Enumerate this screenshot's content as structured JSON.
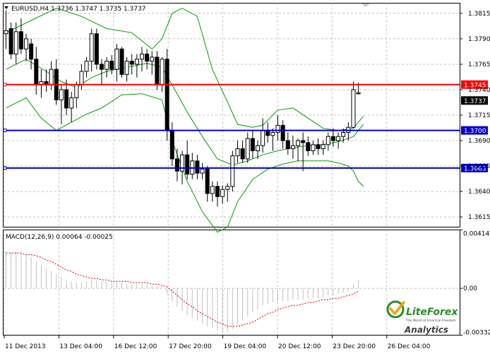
{
  "chart_data": [
    {
      "type": "candlestick",
      "title": "EURUSD,H4  1.3736 1.3747 1.3735 1.3737",
      "symbol": "EURUSD",
      "timeframe": "H4",
      "ohlc_header": {
        "open": 1.3736,
        "high": 1.3747,
        "low": 1.3735,
        "close": 1.3737
      },
      "ylim": [
        1.3605,
        1.3825
      ],
      "y_ticks": [
        "1.3815",
        "1.3790",
        "1.3765",
        "1.3740",
        "1.3715",
        "1.3690",
        "1.3665",
        "1.3640",
        "1.3615"
      ],
      "x_ticks": [
        "11 Dec 2013",
        "13 Dec 04:00",
        "16 Dec 12:00",
        "17 Dec 20:00",
        "19 Dec 04:00",
        "20 Dec 12:00",
        "23 Dec 20:00",
        "26 Dec 04:00"
      ],
      "horizontal_lines": [
        {
          "price": 1.3745,
          "label": "1.3745",
          "color": "#ff0000"
        },
        {
          "price": 1.37,
          "label": "1.3700",
          "color": "#0000cc"
        },
        {
          "price": 1.3663,
          "label": "1.3663",
          "color": "#0000cc"
        }
      ],
      "current_price_label": "1.3737",
      "bullish_color": "#ffffff",
      "bearish_color": "#000000",
      "bollinger_color": "#00a000",
      "candles": [
        {
          "o": 1.3795,
          "h": 1.3818,
          "l": 1.378,
          "c": 1.3798
        },
        {
          "o": 1.38,
          "h": 1.3806,
          "l": 1.377,
          "c": 1.3775
        },
        {
          "o": 1.3775,
          "h": 1.3806,
          "l": 1.3765,
          "c": 1.3797
        },
        {
          "o": 1.3797,
          "h": 1.381,
          "l": 1.3775,
          "c": 1.378
        },
        {
          "o": 1.378,
          "h": 1.3795,
          "l": 1.3768,
          "c": 1.379
        },
        {
          "o": 1.3785,
          "h": 1.379,
          "l": 1.376,
          "c": 1.377
        },
        {
          "o": 1.377,
          "h": 1.3782,
          "l": 1.3735,
          "c": 1.3745
        },
        {
          "o": 1.3745,
          "h": 1.376,
          "l": 1.3732,
          "c": 1.3748
        },
        {
          "o": 1.3748,
          "h": 1.376,
          "l": 1.3738,
          "c": 1.3745
        },
        {
          "o": 1.3745,
          "h": 1.3768,
          "l": 1.374,
          "c": 1.376
        },
        {
          "o": 1.376,
          "h": 1.377,
          "l": 1.3725,
          "c": 1.373
        },
        {
          "o": 1.373,
          "h": 1.3745,
          "l": 1.3706,
          "c": 1.374
        },
        {
          "o": 1.374,
          "h": 1.375,
          "l": 1.3715,
          "c": 1.3722
        },
        {
          "o": 1.3722,
          "h": 1.3738,
          "l": 1.3708,
          "c": 1.3732
        },
        {
          "o": 1.3732,
          "h": 1.3748,
          "l": 1.3722,
          "c": 1.3745
        },
        {
          "o": 1.3745,
          "h": 1.3765,
          "l": 1.374,
          "c": 1.3758
        },
        {
          "o": 1.3758,
          "h": 1.3772,
          "l": 1.3752,
          "c": 1.3768
        },
        {
          "o": 1.3768,
          "h": 1.38,
          "l": 1.3758,
          "c": 1.3795
        },
        {
          "o": 1.3795,
          "h": 1.38,
          "l": 1.376,
          "c": 1.3765
        },
        {
          "o": 1.3765,
          "h": 1.377,
          "l": 1.3745,
          "c": 1.376
        },
        {
          "o": 1.376,
          "h": 1.3772,
          "l": 1.3752,
          "c": 1.3768
        },
        {
          "o": 1.3768,
          "h": 1.3774,
          "l": 1.3755,
          "c": 1.376
        },
        {
          "o": 1.376,
          "h": 1.3785,
          "l": 1.3748,
          "c": 1.378
        },
        {
          "o": 1.378,
          "h": 1.3782,
          "l": 1.3752,
          "c": 1.3755
        },
        {
          "o": 1.3755,
          "h": 1.3772,
          "l": 1.3748,
          "c": 1.3768
        },
        {
          "o": 1.3768,
          "h": 1.3775,
          "l": 1.3755,
          "c": 1.3765
        },
        {
          "o": 1.3765,
          "h": 1.3775,
          "l": 1.3752,
          "c": 1.377
        },
        {
          "o": 1.377,
          "h": 1.3782,
          "l": 1.3758,
          "c": 1.3775
        },
        {
          "o": 1.3775,
          "h": 1.378,
          "l": 1.376,
          "c": 1.3768
        },
        {
          "o": 1.3768,
          "h": 1.3778,
          "l": 1.3755,
          "c": 1.3772
        },
        {
          "o": 1.3772,
          "h": 1.3778,
          "l": 1.374,
          "c": 1.3745
        },
        {
          "o": 1.3745,
          "h": 1.3772,
          "l": 1.3738,
          "c": 1.377
        },
        {
          "o": 1.377,
          "h": 1.378,
          "l": 1.369,
          "c": 1.37
        },
        {
          "o": 1.37,
          "h": 1.3708,
          "l": 1.3665,
          "c": 1.3672
        },
        {
          "o": 1.3672,
          "h": 1.3682,
          "l": 1.365,
          "c": 1.366
        },
        {
          "o": 1.366,
          "h": 1.368,
          "l": 1.3647,
          "c": 1.3676
        },
        {
          "o": 1.3676,
          "h": 1.369,
          "l": 1.3652,
          "c": 1.3657
        },
        {
          "o": 1.3657,
          "h": 1.3678,
          "l": 1.3652,
          "c": 1.367
        },
        {
          "o": 1.367,
          "h": 1.3676,
          "l": 1.3652,
          "c": 1.3658
        },
        {
          "o": 1.3658,
          "h": 1.3668,
          "l": 1.3652,
          "c": 1.3662
        },
        {
          "o": 1.3662,
          "h": 1.3665,
          "l": 1.363,
          "c": 1.3638
        },
        {
          "o": 1.3638,
          "h": 1.365,
          "l": 1.363,
          "c": 1.3645
        },
        {
          "o": 1.3645,
          "h": 1.365,
          "l": 1.3625,
          "c": 1.3635
        },
        {
          "o": 1.3635,
          "h": 1.3646,
          "l": 1.3628,
          "c": 1.3642
        },
        {
          "o": 1.3642,
          "h": 1.3648,
          "l": 1.363,
          "c": 1.3645
        },
        {
          "o": 1.3645,
          "h": 1.368,
          "l": 1.364,
          "c": 1.3675
        },
        {
          "o": 1.3675,
          "h": 1.369,
          "l": 1.3668,
          "c": 1.3682
        },
        {
          "o": 1.3682,
          "h": 1.369,
          "l": 1.3668,
          "c": 1.3672
        },
        {
          "o": 1.3672,
          "h": 1.3698,
          "l": 1.3668,
          "c": 1.3692
        },
        {
          "o": 1.3692,
          "h": 1.37,
          "l": 1.3672,
          "c": 1.368
        },
        {
          "o": 1.368,
          "h": 1.369,
          "l": 1.3672,
          "c": 1.3685
        },
        {
          "o": 1.3685,
          "h": 1.3712,
          "l": 1.3678,
          "c": 1.37
        },
        {
          "o": 1.37,
          "h": 1.3708,
          "l": 1.3688,
          "c": 1.3695
        },
        {
          "o": 1.3695,
          "h": 1.3702,
          "l": 1.368,
          "c": 1.3698
        },
        {
          "o": 1.3698,
          "h": 1.3715,
          "l": 1.369,
          "c": 1.3705
        },
        {
          "o": 1.3705,
          "h": 1.371,
          "l": 1.3682,
          "c": 1.369
        },
        {
          "o": 1.369,
          "h": 1.3698,
          "l": 1.3676,
          "c": 1.3682
        },
        {
          "o": 1.3682,
          "h": 1.3695,
          "l": 1.3672,
          "c": 1.3685
        },
        {
          "o": 1.3685,
          "h": 1.3692,
          "l": 1.367,
          "c": 1.369
        },
        {
          "o": 1.369,
          "h": 1.3698,
          "l": 1.366,
          "c": 1.3688
        },
        {
          "o": 1.3688,
          "h": 1.3694,
          "l": 1.3675,
          "c": 1.368
        },
        {
          "o": 1.368,
          "h": 1.369,
          "l": 1.3676,
          "c": 1.3686
        },
        {
          "o": 1.3686,
          "h": 1.3692,
          "l": 1.3676,
          "c": 1.3682
        },
        {
          "o": 1.3682,
          "h": 1.369,
          "l": 1.3676,
          "c": 1.3686
        },
        {
          "o": 1.3686,
          "h": 1.3698,
          "l": 1.368,
          "c": 1.3694
        },
        {
          "o": 1.3694,
          "h": 1.3702,
          "l": 1.3684,
          "c": 1.369
        },
        {
          "o": 1.369,
          "h": 1.3698,
          "l": 1.3682,
          "c": 1.3694
        },
        {
          "o": 1.3694,
          "h": 1.3702,
          "l": 1.3688,
          "c": 1.3698
        },
        {
          "o": 1.3698,
          "h": 1.3708,
          "l": 1.369,
          "c": 1.3703
        },
        {
          "o": 1.3703,
          "h": 1.3748,
          "l": 1.3702,
          "c": 1.374
        },
        {
          "o": 1.3736,
          "h": 1.3747,
          "l": 1.3735,
          "c": 1.3737
        }
      ],
      "bollinger": {
        "upper": [
          [
            0,
            1.3796
          ],
          [
            5,
            1.3808
          ],
          [
            10,
            1.382
          ],
          [
            15,
            1.3812
          ],
          [
            20,
            1.38
          ],
          [
            25,
            1.3796
          ],
          [
            29,
            1.378
          ],
          [
            31,
            1.379
          ],
          [
            33,
            1.3815
          ],
          [
            35,
            1.382
          ],
          [
            38,
            1.3812
          ],
          [
            41,
            1.376
          ],
          [
            44,
            1.3728
          ],
          [
            46,
            1.3706
          ],
          [
            49,
            1.3703
          ],
          [
            51,
            1.3705
          ],
          [
            54,
            1.372
          ],
          [
            57,
            1.3722
          ],
          [
            60,
            1.3712
          ],
          [
            63,
            1.3702
          ],
          [
            66,
            1.37
          ],
          [
            69,
            1.3702
          ],
          [
            70,
            1.3708
          ],
          [
            71,
            1.3714
          ]
        ],
        "middle": [
          [
            0,
            1.376
          ],
          [
            4,
            1.377
          ],
          [
            8,
            1.3758
          ],
          [
            11,
            1.3748
          ],
          [
            14,
            1.3742
          ],
          [
            17,
            1.3752
          ],
          [
            20,
            1.3758
          ],
          [
            24,
            1.3762
          ],
          [
            28,
            1.3766
          ],
          [
            31,
            1.3762
          ],
          [
            33,
            1.3745
          ],
          [
            36,
            1.3718
          ],
          [
            39,
            1.3694
          ],
          [
            42,
            1.3672
          ],
          [
            45,
            1.3666
          ],
          [
            48,
            1.367
          ],
          [
            51,
            1.3676
          ],
          [
            54,
            1.368
          ],
          [
            57,
            1.3683
          ],
          [
            60,
            1.3685
          ],
          [
            63,
            1.3686
          ],
          [
            66,
            1.3689
          ],
          [
            69,
            1.3694
          ],
          [
            70,
            1.37
          ],
          [
            71,
            1.3706
          ]
        ],
        "lower": [
          [
            0,
            1.3722
          ],
          [
            4,
            1.3732
          ],
          [
            7,
            1.3712
          ],
          [
            10,
            1.37
          ],
          [
            13,
            1.3708
          ],
          [
            16,
            1.3716
          ],
          [
            19,
            1.3722
          ],
          [
            23,
            1.3735
          ],
          [
            27,
            1.3736
          ],
          [
            31,
            1.373
          ],
          [
            33,
            1.369
          ],
          [
            36,
            1.365
          ],
          [
            39,
            1.362
          ],
          [
            42,
            1.36
          ],
          [
            44,
            1.3605
          ],
          [
            46,
            1.363
          ],
          [
            49,
            1.3652
          ],
          [
            52,
            1.3662
          ],
          [
            55,
            1.3667
          ],
          [
            58,
            1.367
          ],
          [
            61,
            1.367
          ],
          [
            64,
            1.367
          ],
          [
            66,
            1.3668
          ],
          [
            68,
            1.3665
          ],
          [
            69,
            1.366
          ],
          [
            70,
            1.365
          ],
          [
            71,
            1.3645
          ]
        ]
      }
    },
    {
      "type": "bar",
      "title": "MACD(12,26,9) 0.00064 -0.00025",
      "indicator": "MACD",
      "params": "12,26,9",
      "main_value": "0.00064",
      "signal_value": "-0.00025",
      "ylim": [
        -0.00332,
        0.00414
      ],
      "y_ticks": [
        "0.00414",
        "0.00",
        "-0.00332"
      ],
      "histogram_color": "#c0c0c0",
      "signal_color": "#cc0000",
      "histogram": [
        0.0026,
        0.0025,
        0.0026,
        0.0025,
        0.0024,
        0.0022,
        0.0019,
        0.0017,
        0.0014,
        0.0012,
        0.001,
        0.0008,
        0.0006,
        0.0005,
        0.0004,
        0.0004,
        0.0005,
        0.0006,
        0.0006,
        0.0005,
        0.0005,
        0.0004,
        0.0004,
        0.0004,
        0.0003,
        0.0003,
        0.0003,
        0.0003,
        0.0003,
        0.0002,
        0.0001,
        0.0001,
        -0.0004,
        -0.0009,
        -0.0013,
        -0.0016,
        -0.0019,
        -0.0021,
        -0.0023,
        -0.0025,
        -0.0027,
        -0.0028,
        -0.003,
        -0.0031,
        -0.0031,
        -0.0029,
        -0.0026,
        -0.0023,
        -0.002,
        -0.0017,
        -0.0015,
        -0.0012,
        -0.0011,
        -0.001,
        -0.0009,
        -0.0009,
        -0.0009,
        -0.0008,
        -0.0008,
        -0.0008,
        -0.0007,
        -0.0007,
        -0.0007,
        -0.0006,
        -0.0005,
        -0.0005,
        -0.0004,
        -0.0003,
        -0.0002,
        0.0003,
        0.0006
      ],
      "signal": [
        0.0025,
        0.0025,
        0.0025,
        0.0025,
        0.0024,
        0.0024,
        0.0023,
        0.0022,
        0.002,
        0.0019,
        0.0017,
        0.0015,
        0.0013,
        0.0012,
        0.001,
        0.0009,
        0.0008,
        0.0007,
        0.0007,
        0.0006,
        0.0006,
        0.0005,
        0.0005,
        0.0005,
        0.0005,
        0.0004,
        0.0004,
        0.0004,
        0.0004,
        0.0003,
        0.0003,
        0.0002,
        0.0001,
        -0.0002,
        -0.0005,
        -0.0008,
        -0.0011,
        -0.0013,
        -0.0016,
        -0.0018,
        -0.002,
        -0.0022,
        -0.0024,
        -0.0025,
        -0.0027,
        -0.0027,
        -0.0027,
        -0.0026,
        -0.0025,
        -0.0024,
        -0.0022,
        -0.002,
        -0.0018,
        -0.0017,
        -0.0015,
        -0.0014,
        -0.0013,
        -0.0012,
        -0.0012,
        -0.0011,
        -0.001,
        -0.001,
        -0.0009,
        -0.0008,
        -0.0008,
        -0.0007,
        -0.0007,
        -0.0006,
        -0.0005,
        -0.0004,
        -0.0002
      ]
    }
  ],
  "branding": {
    "logo_text": "LiteForex",
    "tagline": "The World of Financial Freedom",
    "sub_text": "Analytics"
  }
}
